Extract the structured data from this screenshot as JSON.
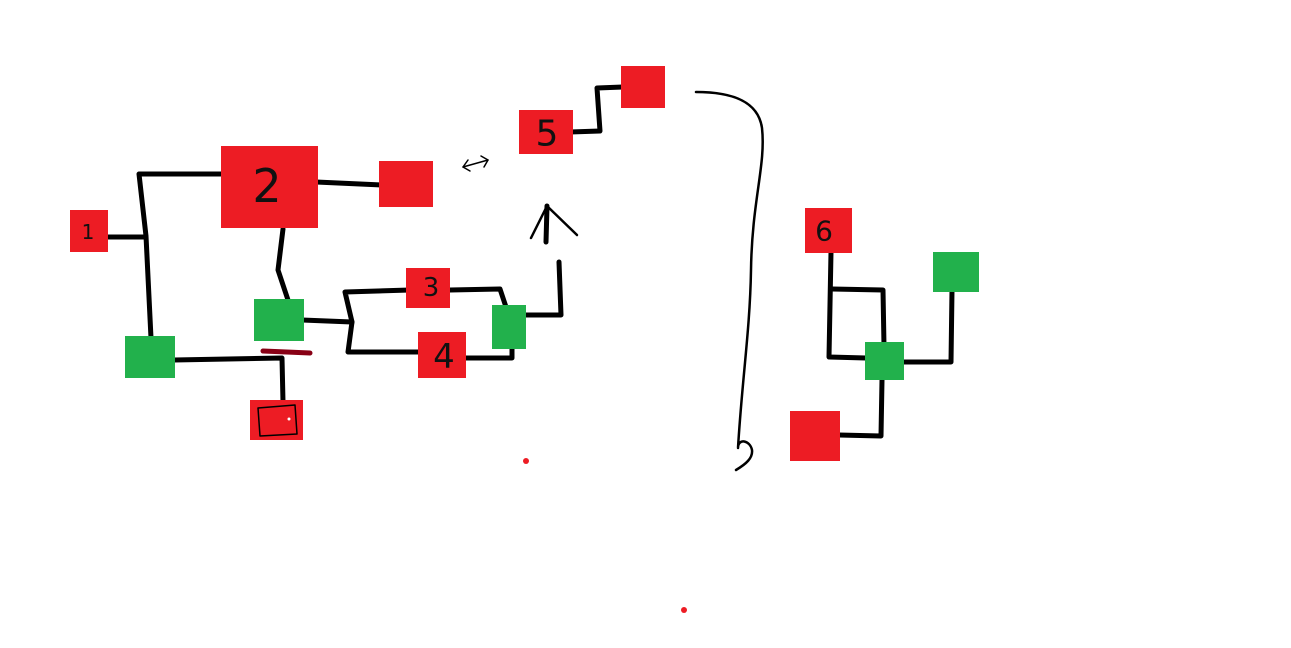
{
  "colors": {
    "red_node": "#ed1c24",
    "green_node": "#22b14c",
    "wire": "#000000",
    "marker": "#880015",
    "background": "#ffffff"
  },
  "nodes": {
    "n1": {
      "label": "1"
    },
    "n2": {
      "label": "2"
    },
    "n3": {
      "label": "3"
    },
    "n4": {
      "label": "4"
    },
    "n5": {
      "label": "5"
    },
    "n6": {
      "label": "6"
    }
  }
}
